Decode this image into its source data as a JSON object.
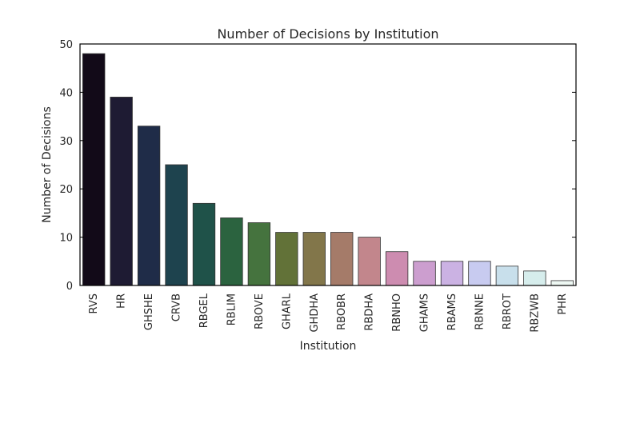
{
  "chart_data": {
    "type": "bar",
    "title": "Number of Decisions by Institution",
    "xlabel": "Institution",
    "ylabel": "Number of Decisions",
    "ylim": [
      0,
      50
    ],
    "yticks": [
      0,
      10,
      20,
      30,
      40,
      50
    ],
    "grid": false,
    "legend": "none",
    "categories": [
      "RVS",
      "HR",
      "GHSHE",
      "CRVB",
      "RBGEL",
      "RBLIM",
      "RBOVE",
      "GHARL",
      "GHDHA",
      "RBOBR",
      "RBDHA",
      "RBNHO",
      "GHAMS",
      "RBAMS",
      "RBNNE",
      "RBROT",
      "RBZWB",
      "PHR"
    ],
    "values": [
      48,
      39,
      33,
      25,
      17,
      14,
      13,
      11,
      11,
      11,
      10,
      7,
      5,
      5,
      5,
      4,
      3,
      1
    ],
    "colors": [
      "#120a18",
      "#1e1b33",
      "#1f2c48",
      "#1e434e",
      "#1f5249",
      "#2b633f",
      "#45733e",
      "#627238",
      "#82764a",
      "#a57b69",
      "#c2868c",
      "#cd8cb0",
      "#cc9ecf",
      "#cbb2e3",
      "#c8cbf0",
      "#c8dfeb",
      "#d6edec",
      "#eef8f3"
    ]
  }
}
